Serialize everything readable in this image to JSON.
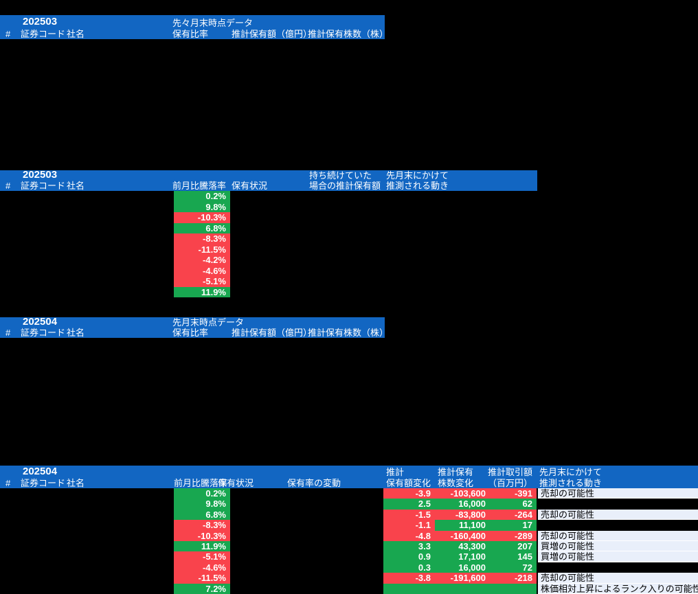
{
  "colors": {
    "header_blue": "#1266c2",
    "up_green": "#18a750",
    "down_red": "#f9434c",
    "note_bg": "#e9effa",
    "page_bg": "#000000"
  },
  "s1": {
    "month": "202503",
    "span_label": "先々月末時点データ",
    "cols": {
      "num": "#",
      "code": "証券コード",
      "name": "社名",
      "ratio": "保有比率",
      "amount": "推計保有額（億円）",
      "shares": "推計保有株数（株）"
    }
  },
  "s2": {
    "month": "202503",
    "cols": {
      "num": "#",
      "code": "証券コード",
      "name": "社名",
      "change": "前月比騰落率",
      "status": "保有状況",
      "held1": "持ち続けていた",
      "held2": "場合の推計保有額",
      "move1": "先月末にかけて",
      "move2": "推測される動き"
    },
    "rows": [
      {
        "pct": "0.2%",
        "tone": "up"
      },
      {
        "pct": "9.8%",
        "tone": "up"
      },
      {
        "pct": "-10.3%",
        "tone": "down"
      },
      {
        "pct": "6.8%",
        "tone": "up"
      },
      {
        "pct": "-8.3%",
        "tone": "down"
      },
      {
        "pct": "-11.5%",
        "tone": "down"
      },
      {
        "pct": "-4.2%",
        "tone": "down"
      },
      {
        "pct": "-4.6%",
        "tone": "down"
      },
      {
        "pct": "-5.1%",
        "tone": "down"
      },
      {
        "pct": "11.9%",
        "tone": "up"
      }
    ]
  },
  "s3": {
    "month": "202504",
    "span_label": "先月末時点データ",
    "cols": {
      "num": "#",
      "code": "証券コード",
      "name": "社名",
      "ratio": "保有比率",
      "amount": "推計保有額（億円）",
      "shares": "推計保有株数（株）"
    }
  },
  "s4": {
    "month": "202504",
    "cols": {
      "num": "#",
      "code": "証券コード",
      "name": "社名",
      "change": "前月比騰落率",
      "status": "保有状況",
      "ratio_change": "保有率の変動",
      "amt1": "推計",
      "amt2": "保有額変化",
      "sh1": "推計保有",
      "sh2": "株数変化",
      "trade1": "推計取引額",
      "trade2": "（百万円）",
      "move1": "先月末にかけて",
      "move2": "推測される動き"
    },
    "rows": [
      {
        "pct": "0.2%",
        "pct_tone": "up",
        "amt": "-3.9",
        "amt_tone": "down",
        "shares": "-103,600",
        "shares_tone": "down",
        "trade": "-391",
        "trade_tone": "down",
        "note": "売却の可能性"
      },
      {
        "pct": "9.8%",
        "pct_tone": "up",
        "amt": "2.5",
        "amt_tone": "up",
        "shares": "16,000",
        "shares_tone": "up",
        "trade": "62",
        "trade_tone": "up",
        "note": ""
      },
      {
        "pct": "6.8%",
        "pct_tone": "up",
        "amt": "-1.5",
        "amt_tone": "down",
        "shares": "-83,800",
        "shares_tone": "down",
        "trade": "-264",
        "trade_tone": "down",
        "note": "売却の可能性"
      },
      {
        "pct": "-8.3%",
        "pct_tone": "down",
        "amt": "-1.1",
        "amt_tone": "down",
        "shares": "11,100",
        "shares_tone": "up",
        "trade": "17",
        "trade_tone": "up",
        "note": ""
      },
      {
        "pct": "-10.3%",
        "pct_tone": "down",
        "amt": "-4.8",
        "amt_tone": "down",
        "shares": "-160,400",
        "shares_tone": "down",
        "trade": "-289",
        "trade_tone": "down",
        "note": "売却の可能性"
      },
      {
        "pct": "11.9%",
        "pct_tone": "up",
        "amt": "3.3",
        "amt_tone": "up",
        "shares": "43,300",
        "shares_tone": "up",
        "trade": "207",
        "trade_tone": "up",
        "note": "買増の可能性"
      },
      {
        "pct": "-5.1%",
        "pct_tone": "down",
        "amt": "0.9",
        "amt_tone": "up",
        "shares": "17,100",
        "shares_tone": "up",
        "trade": "145",
        "trade_tone": "up",
        "note": "買増の可能性"
      },
      {
        "pct": "-4.6%",
        "pct_tone": "down",
        "amt": "0.3",
        "amt_tone": "up",
        "shares": "16,000",
        "shares_tone": "up",
        "trade": "72",
        "trade_tone": "up",
        "note": ""
      },
      {
        "pct": "-11.5%",
        "pct_tone": "down",
        "amt": "-3.8",
        "amt_tone": "down",
        "shares": "-191,600",
        "shares_tone": "down",
        "trade": "-218",
        "trade_tone": "down",
        "note": "売却の可能性"
      },
      {
        "pct": "7.2%",
        "pct_tone": "up",
        "amt": "",
        "amt_tone": "up",
        "shares": "",
        "shares_tone": "up",
        "trade": "",
        "trade_tone": "up",
        "note": "株価相対上昇によるランク入りの可能性"
      }
    ]
  }
}
